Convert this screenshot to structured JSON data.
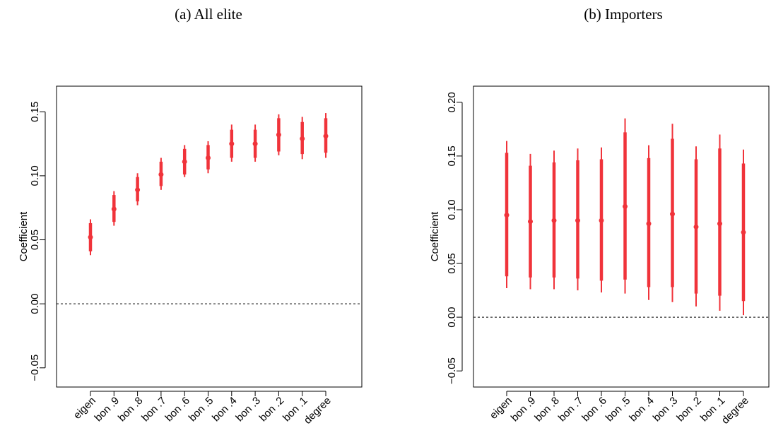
{
  "chart_data": [
    {
      "type": "scatter",
      "title": "(a) All elite",
      "xlabel": "",
      "ylabel": "Coefficient",
      "categories": [
        "eigen",
        "bon .9",
        "bon .8",
        "bon .7",
        "bon .6",
        "bon .5",
        "bon .4",
        "bon .3",
        "bon .2",
        "bon .1",
        "degree"
      ],
      "ylim": [
        -0.065,
        0.17
      ],
      "yticks": [
        -0.05,
        0.0,
        0.05,
        0.1,
        0.15
      ],
      "ytick_labels": [
        "−0.05",
        "0.00",
        "0.05",
        "0.10",
        "0.15"
      ],
      "reference_line": 0.0,
      "estimates": [
        0.052,
        0.074,
        0.089,
        0.101,
        0.111,
        0.114,
        0.125,
        0.125,
        0.132,
        0.129,
        0.131
      ],
      "ci_outer_low": [
        0.038,
        0.061,
        0.077,
        0.089,
        0.099,
        0.102,
        0.111,
        0.111,
        0.116,
        0.113,
        0.114
      ],
      "ci_outer_high": [
        0.066,
        0.088,
        0.102,
        0.114,
        0.124,
        0.127,
        0.14,
        0.14,
        0.148,
        0.146,
        0.149
      ],
      "ci_inner_low": [
        0.041,
        0.064,
        0.08,
        0.092,
        0.101,
        0.105,
        0.114,
        0.114,
        0.119,
        0.117,
        0.118
      ],
      "ci_inner_high": [
        0.063,
        0.085,
        0.099,
        0.111,
        0.121,
        0.124,
        0.136,
        0.136,
        0.145,
        0.142,
        0.145
      ],
      "color": "#f0333a"
    },
    {
      "type": "scatter",
      "title": "(b) Importers",
      "xlabel": "",
      "ylabel": "Coefficient",
      "categories": [
        "eigen",
        "bon .9",
        "bon .8",
        "bon .7",
        "bon .6",
        "bon .5",
        "bon .4",
        "bon .3",
        "bon .2",
        "bon .1",
        "degree"
      ],
      "ylim": [
        -0.065,
        0.215
      ],
      "yticks": [
        -0.05,
        0.0,
        0.05,
        0.1,
        0.15,
        0.2
      ],
      "ytick_labels": [
        "−0.05",
        "0.00",
        "0.05",
        "0.10",
        "0.15",
        "0.20"
      ],
      "reference_line": 0.0,
      "estimates": [
        0.095,
        0.089,
        0.09,
        0.09,
        0.09,
        0.103,
        0.087,
        0.096,
        0.084,
        0.087,
        0.079
      ],
      "ci_outer_low": [
        0.027,
        0.026,
        0.026,
        0.025,
        0.023,
        0.022,
        0.016,
        0.014,
        0.01,
        0.006,
        0.002
      ],
      "ci_outer_high": [
        0.164,
        0.152,
        0.155,
        0.157,
        0.158,
        0.185,
        0.16,
        0.18,
        0.159,
        0.17,
        0.156
      ],
      "ci_inner_low": [
        0.038,
        0.037,
        0.037,
        0.036,
        0.034,
        0.035,
        0.028,
        0.028,
        0.022,
        0.02,
        0.015
      ],
      "ci_inner_high": [
        0.153,
        0.141,
        0.144,
        0.146,
        0.147,
        0.172,
        0.148,
        0.166,
        0.147,
        0.157,
        0.143
      ],
      "color": "#f0333a"
    }
  ]
}
